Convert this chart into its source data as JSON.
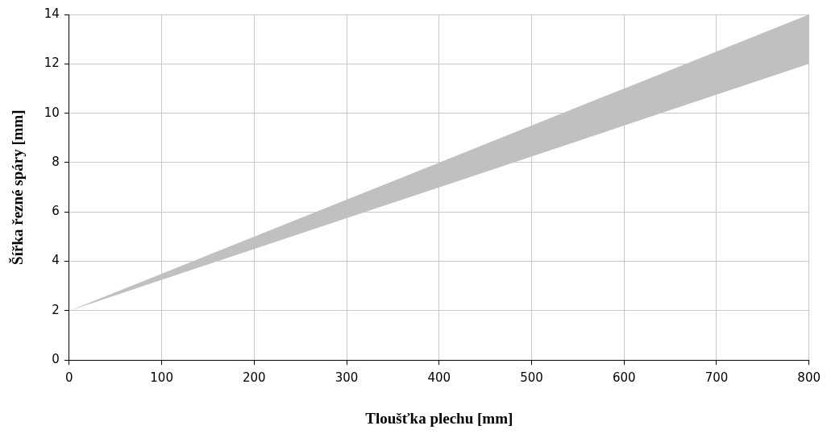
{
  "chart_data": {
    "type": "line",
    "xlabel": "Tloušťka plechu [mm]",
    "ylabel": "Šířka řezné spáry [mm]",
    "x": [
      0,
      800
    ],
    "series": [
      {
        "color": "#c0c0c0",
        "values": [
          null,
          null
        ],
        "lower": [
          2,
          12
        ],
        "upper": [
          2,
          14
        ]
      }
    ],
    "xlim": [
      0,
      800
    ],
    "xticks": [
      0,
      100,
      200,
      300,
      400,
      500,
      600,
      700,
      800
    ],
    "ylim": [
      0,
      14
    ],
    "yticks": [
      0,
      2,
      4,
      6,
      8,
      10,
      12,
      14
    ],
    "grid": true,
    "legend": false
  }
}
